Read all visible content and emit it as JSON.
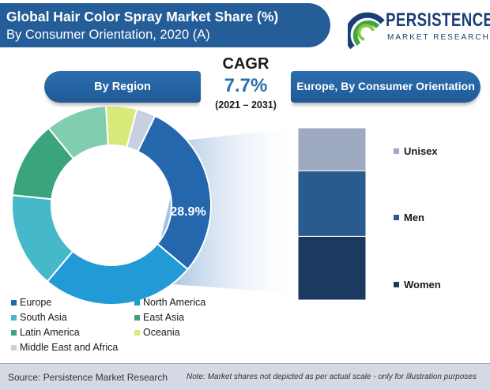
{
  "header": {
    "title_line1": "Global Hair Color Spray Market Share (%)",
    "title_line2": "By Consumer Orientation, 2020 (A)"
  },
  "logo": {
    "brand": "PERSISTENCE",
    "tagline": "MARKET RESEARCH"
  },
  "cagr": {
    "label": "CAGR",
    "value": "7.7%",
    "period": "(2021 – 2031)"
  },
  "chart_data": [
    {
      "type": "pie",
      "title": "By Region",
      "donut": true,
      "series": [
        {
          "name": "Europe",
          "value": 28.9,
          "color": "#2567ac"
        },
        {
          "name": "North America",
          "value": 25.0,
          "color": "#219ad6"
        },
        {
          "name": "South Asia",
          "value": 15.5,
          "color": "#45b8c9"
        },
        {
          "name": "East Asia",
          "value": 12.5,
          "color": "#3aa57d"
        },
        {
          "name": "Latin America",
          "value": 10.0,
          "color": "#80cdb0"
        },
        {
          "name": "Oceania",
          "value": 5.0,
          "color": "#d9ea7a"
        },
        {
          "name": "Middle East and Africa",
          "value": 3.1,
          "color": "#c6d0df"
        }
      ],
      "data_labels": [
        "28.9%"
      ]
    },
    {
      "type": "bar",
      "title": "Europe, By Consumer Orientation",
      "stacked": true,
      "categories": [
        "Europe"
      ],
      "series": [
        {
          "name": "Women",
          "value": 37,
          "color": "#1c3a60"
        },
        {
          "name": "Men",
          "value": 38,
          "color": "#2a5b8e"
        },
        {
          "name": "Unisex",
          "value": 25,
          "color": "#9eaac0"
        }
      ]
    }
  ],
  "legend": {
    "left_column": [
      "Europe",
      "South Asia",
      "Latin America",
      "Middle East and Africa"
    ],
    "right_column": [
      "North America",
      "East Asia",
      "Oceania"
    ]
  },
  "footer": {
    "source": "Source: Persistence Market Research",
    "note": "Note: Market shares not depicted as per actual scale - only for illustration purposes"
  }
}
